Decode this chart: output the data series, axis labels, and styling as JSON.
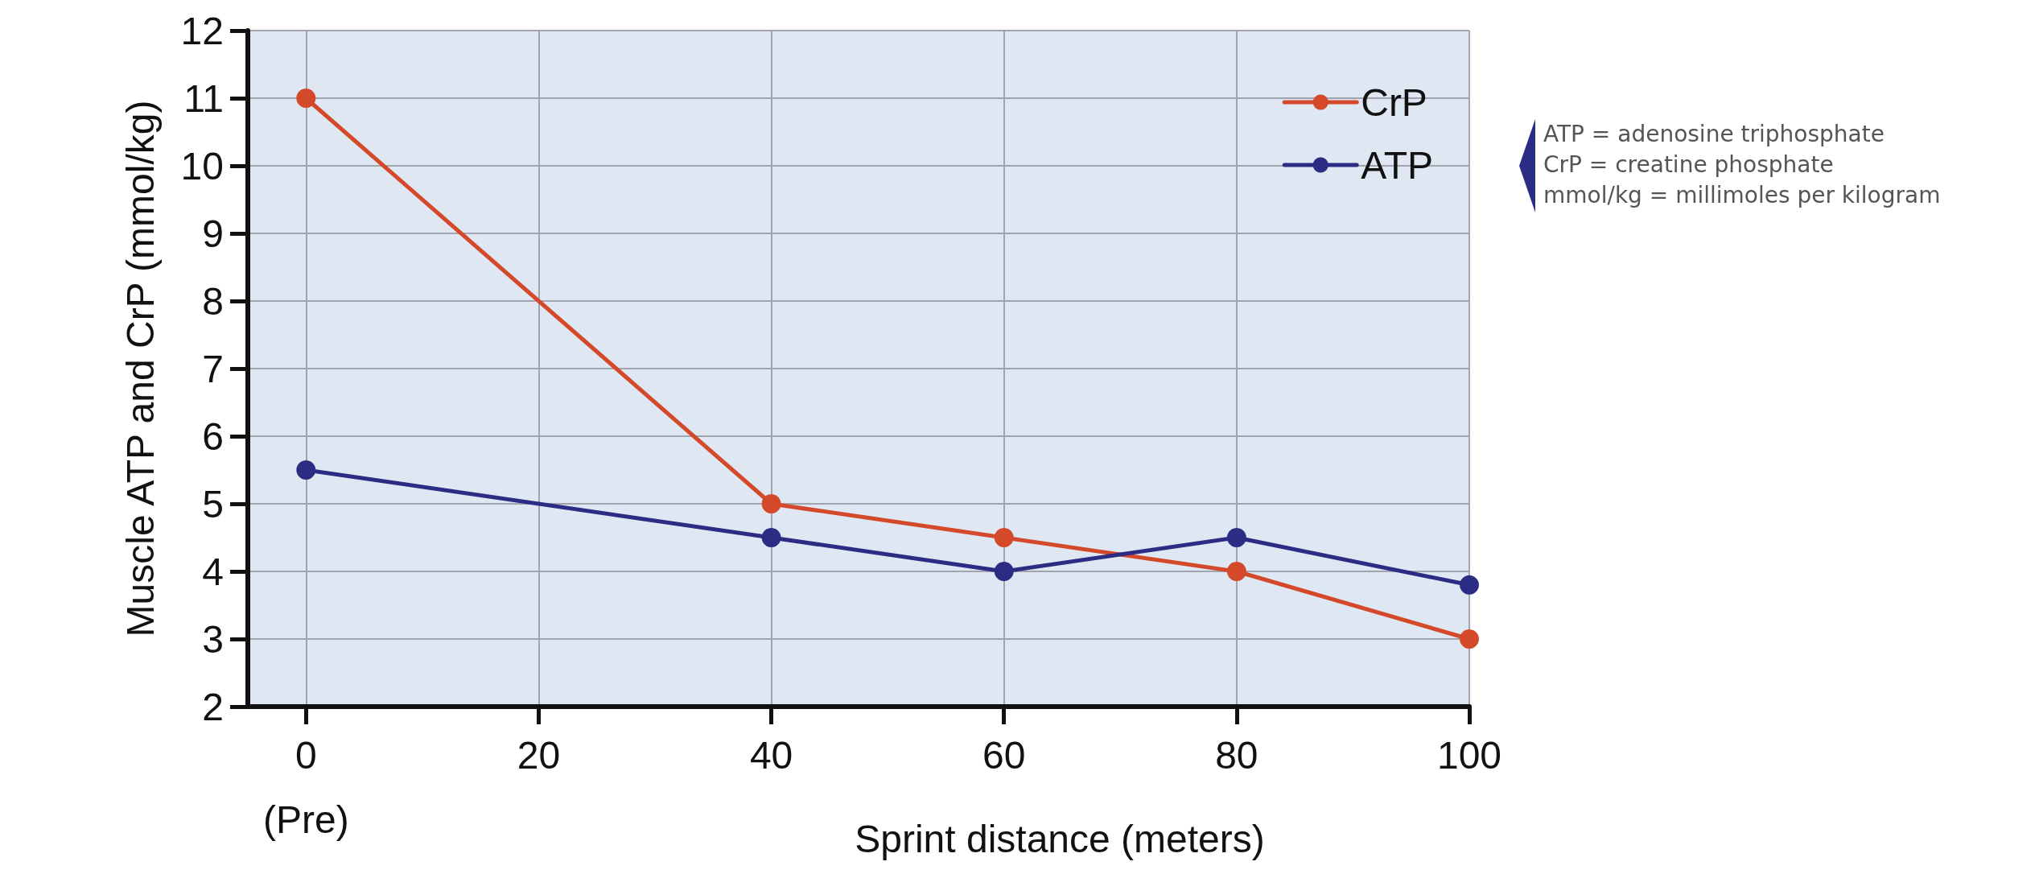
{
  "chart_data": {
    "type": "line",
    "xlabel": "Sprint distance (meters)",
    "ylabel": "Muscle ATP and CrP (mmol/kg)",
    "xlim": [
      -5,
      100
    ],
    "xticks": [
      0,
      20,
      40,
      60,
      80,
      100
    ],
    "ylim": [
      2,
      12
    ],
    "yticks": [
      2,
      3,
      4,
      5,
      6,
      7,
      8,
      9,
      10,
      11,
      12
    ],
    "x": [
      0,
      40,
      60,
      80,
      100
    ],
    "series": [
      {
        "name": "CrP",
        "color": "#d4492a",
        "values": [
          11,
          5,
          4.5,
          4,
          3
        ]
      },
      {
        "name": "ATP",
        "color": "#2b2d84",
        "values": [
          5.5,
          4.5,
          4,
          4.5,
          3.8
        ]
      }
    ],
    "grid": true,
    "legend": "top right",
    "marker": "circle",
    "line_style": "solid",
    "annotations": [
      "(Pre)",
      "ATP = adenosine triphosphate",
      "CrP = creatine phosphate",
      "mmol/kg = millimoles per kilogram"
    ]
  }
}
